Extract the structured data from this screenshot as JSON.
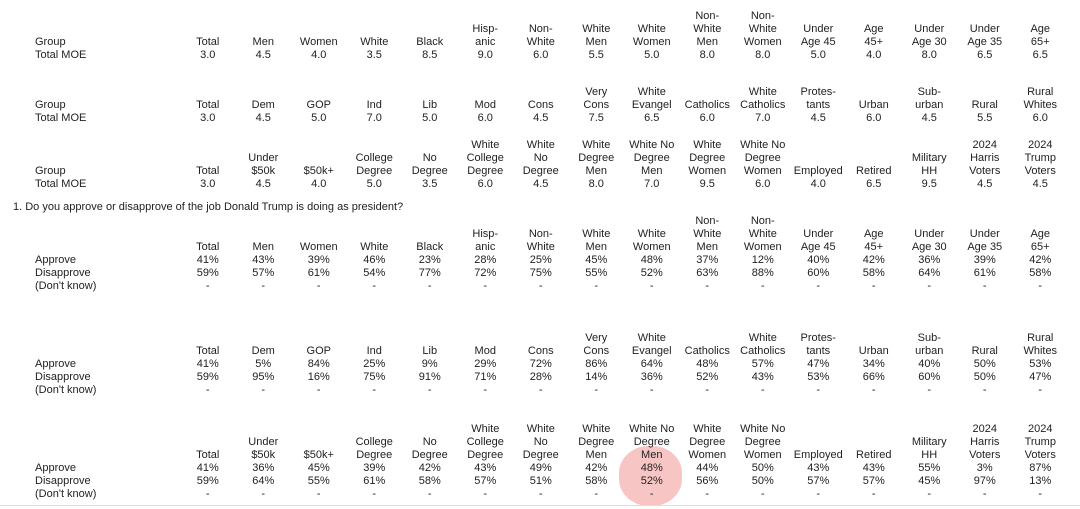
{
  "question": "1. Do you approve or disapprove of the job Donald Trump is doing as president?",
  "highlight": {
    "color": "#f8c5c5",
    "block_index": 5,
    "column_index": 8,
    "column_label": "White No Degree Men",
    "covered_values": [
      "Men",
      "48%",
      "52%",
      "-"
    ]
  },
  "blocks": [
    {
      "kind": "moe",
      "label": "Group",
      "columns": [
        "Total",
        "Men",
        "Women",
        "White",
        "Black",
        "Hisp-\nanic",
        "Non-\nWhite",
        "White\nMen",
        "White\nWomen",
        "Non-\nWhite\nMen",
        "Non-\nWhite\nWomen",
        "Under\nAge 45",
        "Age\n45+",
        "Under\nAge 30",
        "Under\nAge 35",
        "Age\n65+"
      ],
      "rows": [
        {
          "label": "Total MOE",
          "values": [
            "3.0",
            "4.5",
            "4.0",
            "3.5",
            "8.5",
            "9.0",
            "6.0",
            "5.5",
            "5.0",
            "8.0",
            "8.0",
            "5.0",
            "4.0",
            "8.0",
            "6.5",
            "6.5"
          ]
        }
      ]
    },
    {
      "kind": "moe",
      "label": "Group",
      "columns": [
        "Total",
        "Dem",
        "GOP",
        "Ind",
        "Lib",
        "Mod",
        "Cons",
        "Very\nCons",
        "White\nEvangel",
        "Catholics",
        "White\nCatholics",
        "Protes-\ntants",
        "Urban",
        "Sub-\nurban",
        "Rural",
        "Rural\nWhites"
      ],
      "rows": [
        {
          "label": "Total MOE",
          "values": [
            "3.0",
            "4.5",
            "5.0",
            "7.0",
            "5.0",
            "6.0",
            "4.5",
            "7.5",
            "6.5",
            "6.0",
            "7.0",
            "4.5",
            "6.0",
            "4.5",
            "5.5",
            "6.0"
          ]
        }
      ]
    },
    {
      "kind": "moe",
      "label": "Group",
      "columns": [
        "Total",
        "Under\n$50k",
        "$50k+",
        "College\nDegree",
        "No\nDegree",
        "White\nCollege\nDegree",
        "White\nNo\nDegree",
        "White\nDegree\nMen",
        "White No\nDegree\nMen",
        "White\nDegree\nWomen",
        "White No\nDegree\nWomen",
        "Employed",
        "Retired",
        "Military\nHH",
        "2024\nHarris\nVoters",
        "2024\nTrump\nVoters"
      ],
      "rows": [
        {
          "label": "Total MOE",
          "values": [
            "3.0",
            "4.5",
            "4.0",
            "5.0",
            "3.5",
            "6.0",
            "4.5",
            "8.0",
            "7.0",
            "9.5",
            "6.0",
            "4.0",
            "6.5",
            "9.5",
            "4.5",
            "4.5"
          ]
        }
      ]
    },
    {
      "kind": "results",
      "label": "",
      "columns": [
        "Total",
        "Men",
        "Women",
        "White",
        "Black",
        "Hisp-\nanic",
        "Non-\nWhite",
        "White\nMen",
        "White\nWomen",
        "Non-\nWhite\nMen",
        "Non-\nWhite\nWomen",
        "Under\nAge 45",
        "Age\n45+",
        "Under\nAge 30",
        "Under\nAge 35",
        "Age\n65+"
      ],
      "rows": [
        {
          "label": "Approve",
          "values": [
            "41%",
            "43%",
            "39%",
            "46%",
            "23%",
            "28%",
            "25%",
            "45%",
            "48%",
            "37%",
            "12%",
            "40%",
            "42%",
            "36%",
            "39%",
            "42%"
          ]
        },
        {
          "label": "Disapprove",
          "values": [
            "59%",
            "57%",
            "61%",
            "54%",
            "77%",
            "72%",
            "75%",
            "55%",
            "52%",
            "63%",
            "88%",
            "60%",
            "58%",
            "64%",
            "61%",
            "58%"
          ]
        },
        {
          "label": "(Don't know)",
          "values": [
            "-",
            "-",
            "-",
            "-",
            "-",
            "-",
            "-",
            "-",
            "-",
            "-",
            "-",
            "-",
            "-",
            "-",
            "-",
            "-"
          ]
        }
      ]
    },
    {
      "kind": "results",
      "label": "",
      "columns": [
        "Total",
        "Dem",
        "GOP",
        "Ind",
        "Lib",
        "Mod",
        "Cons",
        "Very\nCons",
        "White\nEvangel",
        "Catholics",
        "White\nCatholics",
        "Protes-\ntants",
        "Urban",
        "Sub-\nurban",
        "Rural",
        "Rural\nWhites"
      ],
      "rows": [
        {
          "label": "Approve",
          "values": [
            "41%",
            "5%",
            "84%",
            "25%",
            "9%",
            "29%",
            "72%",
            "86%",
            "64%",
            "48%",
            "57%",
            "47%",
            "34%",
            "40%",
            "50%",
            "53%"
          ]
        },
        {
          "label": "Disapprove",
          "values": [
            "59%",
            "95%",
            "16%",
            "75%",
            "91%",
            "71%",
            "28%",
            "14%",
            "36%",
            "52%",
            "43%",
            "53%",
            "66%",
            "60%",
            "50%",
            "47%"
          ]
        },
        {
          "label": "(Don't know)",
          "values": [
            "-",
            "-",
            "-",
            "-",
            "-",
            "-",
            "-",
            "-",
            "-",
            "-",
            "-",
            "-",
            "-",
            "-",
            "-",
            "-"
          ]
        }
      ]
    },
    {
      "kind": "results",
      "label": "",
      "columns": [
        "Total",
        "Under\n$50k",
        "$50k+",
        "College\nDegree",
        "No\nDegree",
        "White\nCollege\nDegree",
        "White\nNo\nDegree",
        "White\nDegree\nMen",
        "White No\nDegree\nMen",
        "White\nDegree\nWomen",
        "White No\nDegree\nWomen",
        "Employed",
        "Retired",
        "Military\nHH",
        "2024\nHarris\nVoters",
        "2024\nTrump\nVoters"
      ],
      "rows": [
        {
          "label": "Approve",
          "values": [
            "41%",
            "36%",
            "45%",
            "39%",
            "42%",
            "43%",
            "49%",
            "42%",
            "48%",
            "44%",
            "50%",
            "43%",
            "43%",
            "55%",
            "3%",
            "87%"
          ]
        },
        {
          "label": "Disapprove",
          "values": [
            "59%",
            "64%",
            "55%",
            "61%",
            "58%",
            "57%",
            "51%",
            "58%",
            "52%",
            "56%",
            "50%",
            "57%",
            "57%",
            "45%",
            "97%",
            "13%"
          ]
        },
        {
          "label": "(Don't know)",
          "values": [
            "-",
            "-",
            "-",
            "-",
            "-",
            "-",
            "-",
            "-",
            "-",
            "-",
            "-",
            "-",
            "-",
            "-",
            "-",
            "-"
          ]
        }
      ]
    }
  ]
}
